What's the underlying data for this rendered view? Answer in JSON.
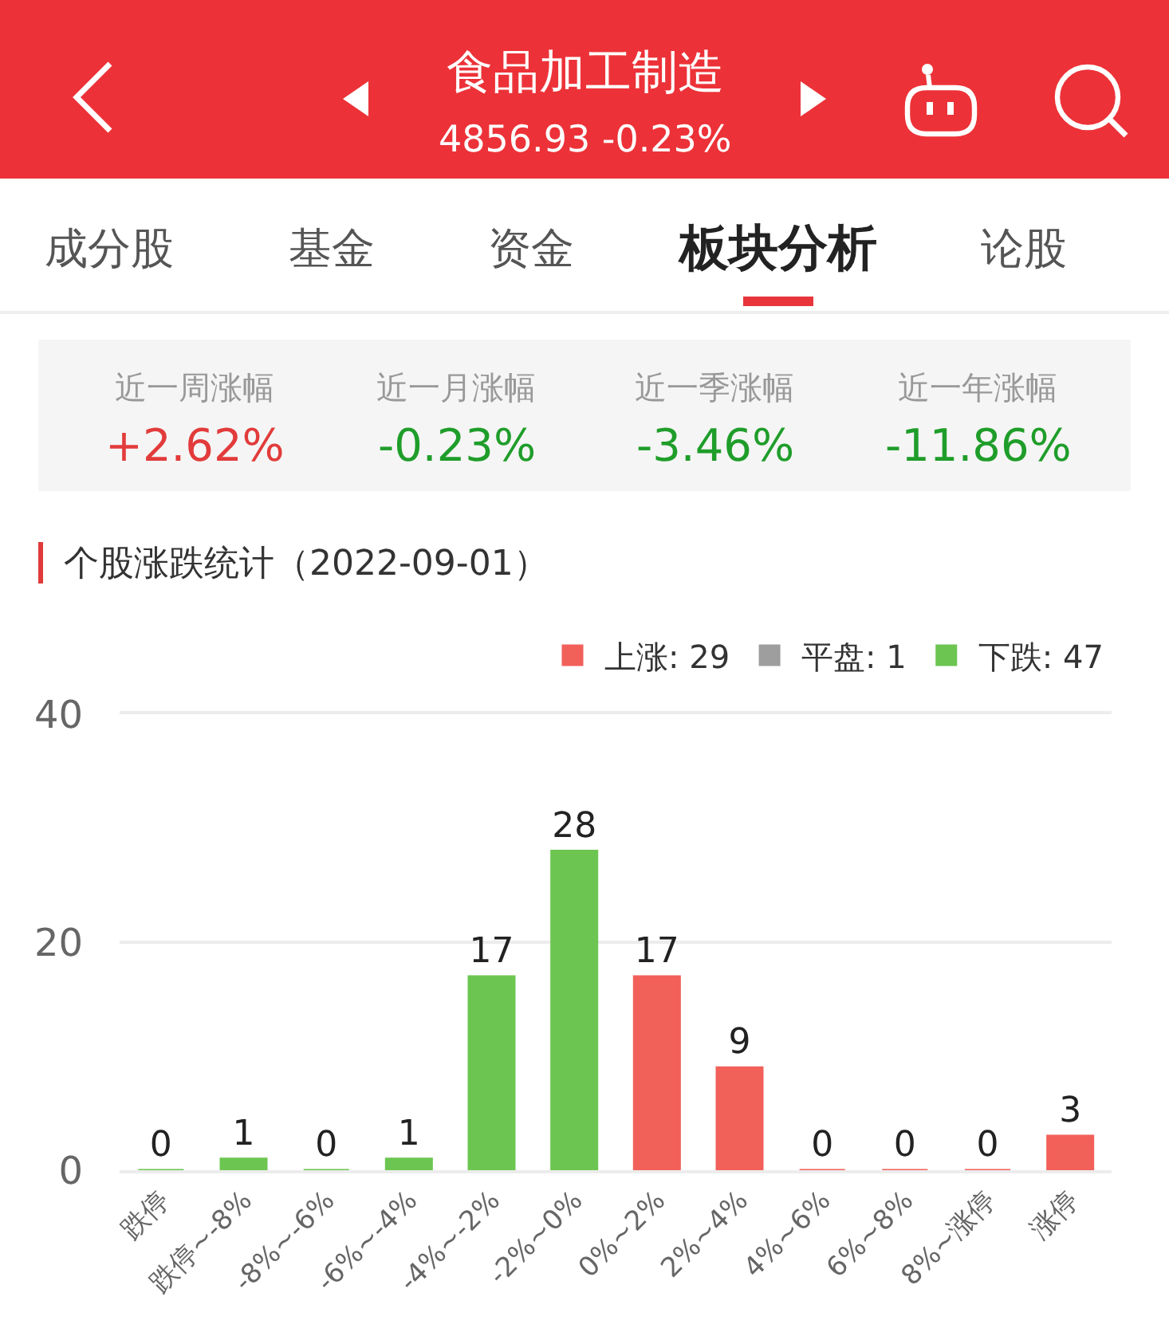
{
  "chart_data": {
    "type": "bar",
    "title": "个股涨跌统计（2022-09-01）",
    "annotations": [
      "食品加工制造",
      "4856.93 -0.23%",
      "成分股",
      "基金",
      "资金",
      "板块分析",
      "论股",
      "近一周涨幅",
      "+2.62%",
      "近一月涨幅",
      "-0.23%",
      "近一季涨幅",
      "-3.46%",
      "近一年涨幅",
      "-11.86%"
    ],
    "categories": [
      "跌停",
      "跌停~-8%",
      "-8%~-6%",
      "-6%~-4%",
      "-4%~-2%",
      "-2%~0%",
      "0%~2%",
      "2%~4%",
      "4%~6%",
      "6%~8%",
      "8%~涨停",
      "涨停"
    ],
    "series": [
      {
        "name": "上涨: 29",
        "color": "#f2605a",
        "values": [
          null,
          null,
          null,
          null,
          null,
          null,
          17,
          9,
          0,
          0,
          0,
          3
        ]
      },
      {
        "name": "平盘: 1",
        "color": "#9e9e9e",
        "values": [
          null,
          null,
          null,
          null,
          null,
          null,
          null,
          null,
          null,
          null,
          null,
          null
        ]
      },
      {
        "name": "下跌: 47",
        "color": "#6cc551",
        "values": [
          0,
          1,
          0,
          1,
          17,
          28,
          null,
          null,
          null,
          null,
          null,
          null
        ]
      }
    ],
    "ylim": [
      0,
      40
    ],
    "yticks": [
      0,
      20,
      40
    ],
    "grid": "y",
    "legend": "top right",
    "data_labels": true
  }
}
